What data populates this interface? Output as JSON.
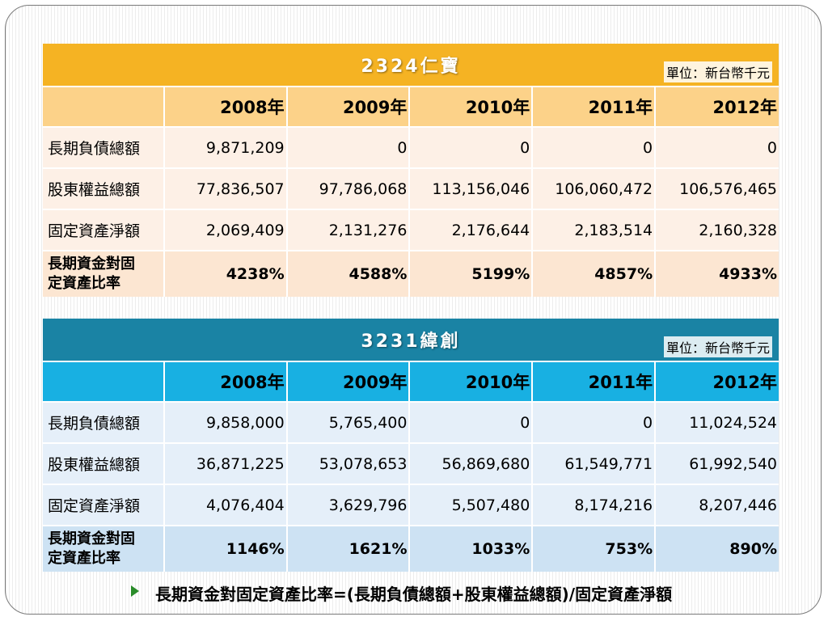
{
  "tables": [
    {
      "title": "2324仁寶",
      "unit": "單位：新台幣千元",
      "years": [
        "2008年",
        "2009年",
        "2010年",
        "2011年",
        "2012年"
      ],
      "rows": [
        {
          "label": "長期負債總額",
          "values": [
            "9,871,209",
            "0",
            "0",
            "0",
            "0"
          ]
        },
        {
          "label": "股東權益總額",
          "values": [
            "77,836,507",
            "97,786,068",
            "113,156,046",
            "106,060,472",
            "106,576,465"
          ]
        },
        {
          "label": "固定資產淨額",
          "values": [
            "2,069,409",
            "2,131,276",
            "2,176,644",
            "2,183,514",
            "2,160,328"
          ]
        }
      ],
      "ratio": {
        "label_line1": "長期資金對固",
        "label_line2": "定資產比率",
        "values": [
          "4238%",
          "4588%",
          "5199%",
          "4857%",
          "4933%"
        ]
      },
      "colors": {
        "title_bg": "#f5b323",
        "header_bg": "#fcd289",
        "row_bg": "#fdf0e6"
      }
    },
    {
      "title": "3231緯創",
      "unit": "單位：新台幣千元",
      "years": [
        "2008年",
        "2009年",
        "2010年",
        "2011年",
        "2012年"
      ],
      "rows": [
        {
          "label": "長期負債總額",
          "values": [
            "9,858,000",
            "5,765,400",
            "0",
            "0",
            "11,024,524"
          ]
        },
        {
          "label": "股東權益總額",
          "values": [
            "36,871,225",
            "53,078,653",
            "56,869,680",
            "61,549,771",
            "61,992,540"
          ]
        },
        {
          "label": "固定資產淨額",
          "values": [
            "4,076,404",
            "3,629,796",
            "5,507,480",
            "8,174,216",
            "8,207,446"
          ]
        }
      ],
      "ratio": {
        "label_line1": "長期資金對固",
        "label_line2": "定資產比率",
        "values": [
          "1146%",
          "1621%",
          "1033%",
          "753%",
          "890%"
        ]
      },
      "colors": {
        "title_bg": "#1a83a4",
        "header_bg": "#18b0e2",
        "row_bg": "#e5eff9"
      }
    }
  ],
  "footnote": {
    "icon": "arrow-bullet-icon",
    "text": "長期資金對固定資產比率=(長期負債總額+股東權益總額)/固定資產淨額"
  }
}
